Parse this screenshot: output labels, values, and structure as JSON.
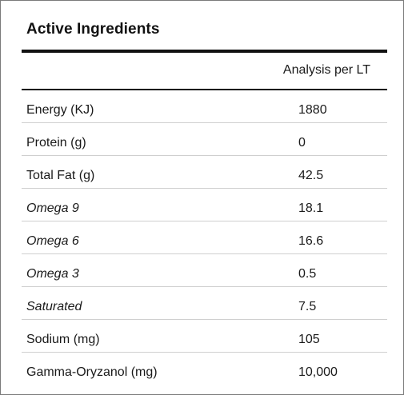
{
  "title": "Active Ingredients",
  "header": {
    "value_column": "Analysis per LT"
  },
  "rows": [
    {
      "name": "Energy (KJ)",
      "value": "1880",
      "italic": false
    },
    {
      "name": "Protein (g)",
      "value": "0",
      "italic": false
    },
    {
      "name": "Total Fat (g)",
      "value": "42.5",
      "italic": false
    },
    {
      "name": "Omega 9",
      "value": "18.1",
      "italic": true
    },
    {
      "name": "Omega 6",
      "value": "16.6",
      "italic": true
    },
    {
      "name": "Omega 3",
      "value": "0.5",
      "italic": true
    },
    {
      "name": "Saturated",
      "value": "7.5",
      "italic": true
    },
    {
      "name": "Sodium (mg)",
      "value": "105",
      "italic": false
    },
    {
      "name": "Gamma-Oryzanol (mg)",
      "value": "10,000",
      "italic": false
    }
  ]
}
